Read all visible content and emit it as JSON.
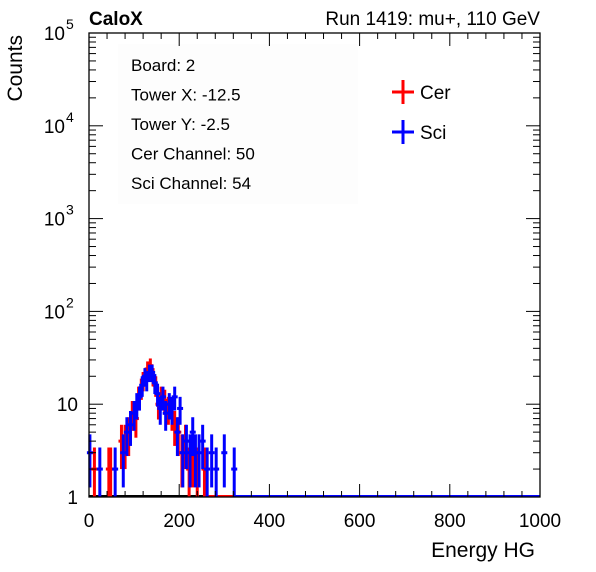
{
  "header": {
    "brand": "CaloX",
    "run_info": "Run 1419: mu+, 110 GeV"
  },
  "info_box": {
    "lines": [
      "Board: 2",
      "Tower X: -12.5",
      "Tower Y: -2.5",
      "Cer Channel: 50",
      "Sci Channel: 54"
    ]
  },
  "chart_data": {
    "type": "line",
    "subtype": "histogram-errorbars",
    "xlabel": "Energy HG",
    "ylabel": "Counts",
    "x_range": [
      0,
      1000
    ],
    "y_range": [
      1,
      100000
    ],
    "y_scale": "log",
    "x_ticks": [
      0,
      200,
      400,
      600,
      800,
      1000
    ],
    "x_tick_labels": [
      "0",
      "200",
      "400",
      "600",
      "800",
      "1000"
    ],
    "y_ticks": [
      1,
      10,
      100,
      1000,
      10000,
      100000
    ],
    "y_tick_labels": [
      {
        "base": "1",
        "exp": ""
      },
      {
        "base": "10",
        "exp": ""
      },
      {
        "base": "10",
        "exp": "2"
      },
      {
        "base": "10",
        "exp": "3"
      },
      {
        "base": "10",
        "exp": "4"
      },
      {
        "base": "10",
        "exp": "5"
      }
    ],
    "legend": {
      "placement": "top-right"
    },
    "grid": false,
    "series": [
      {
        "name": "Cer",
        "color": "#ff0000",
        "x": [
          12,
          44,
          48,
          72,
          80,
          88,
          96,
          104,
          110,
          116,
          120,
          126,
          130,
          136,
          142,
          148,
          154,
          160,
          168,
          176,
          184,
          190,
          198,
          206,
          214,
          222,
          230,
          240,
          256
        ],
        "y": [
          2,
          2,
          2,
          4,
          4,
          5,
          8,
          7,
          12,
          15,
          18,
          20,
          24,
          26,
          20,
          16,
          10,
          12,
          11,
          9,
          8,
          6,
          5,
          3,
          4,
          2,
          3,
          2,
          2
        ]
      },
      {
        "name": "Sci",
        "color": "#0000ff",
        "x": [
          2,
          24,
          58,
          76,
          84,
          92,
          100,
          106,
          112,
          118,
          124,
          128,
          134,
          140,
          146,
          152,
          158,
          164,
          170,
          178,
          184,
          190,
          196,
          202,
          208,
          216,
          224,
          230,
          236,
          244,
          252,
          262,
          272,
          282,
          300,
          322
        ],
        "y": [
          3,
          2,
          2,
          3,
          5,
          6,
          8,
          10,
          12,
          16,
          20,
          18,
          22,
          22,
          17,
          13,
          9,
          12,
          8,
          10,
          9,
          12,
          5,
          9,
          3,
          4,
          3,
          5,
          3,
          3,
          4,
          2,
          3,
          2,
          3,
          2
        ]
      }
    ]
  }
}
